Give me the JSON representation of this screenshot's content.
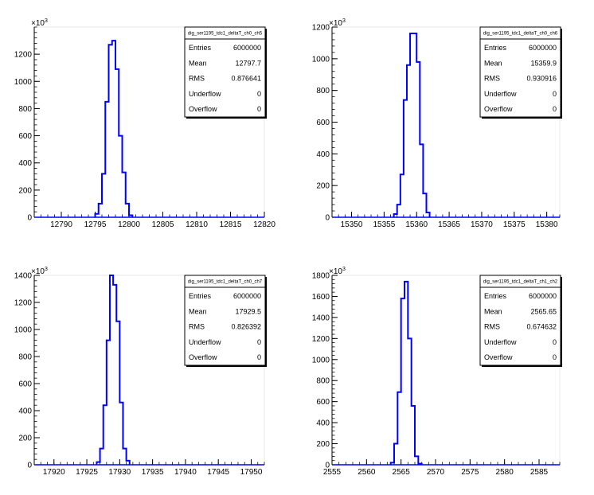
{
  "chart_data": [
    {
      "type": "histogram",
      "stats": {
        "title": "dig_ser1195_tdc1_deltaT_ch0_ch5",
        "rows": [
          {
            "key": "Entries",
            "value": "6000000"
          },
          {
            "key": "Mean",
            "value": "12797.7"
          },
          {
            "key": "RMS",
            "value": "0.876641"
          },
          {
            "key": "Underflow",
            "value": "0"
          },
          {
            "key": "Overflow",
            "value": "0"
          }
        ]
      },
      "y_exponent": "10³",
      "xlim": [
        12786,
        12820
      ],
      "ylim": [
        0,
        1400
      ],
      "x_ticks": [
        12790,
        12795,
        12800,
        12805,
        12810,
        12815,
        12820
      ],
      "y_ticks": [
        0,
        200,
        400,
        600,
        800,
        1000,
        1200
      ],
      "bin_width": 0.5,
      "bins": [
        {
          "x": 12795.0,
          "y": 25
        },
        {
          "x": 12795.5,
          "y": 100
        },
        {
          "x": 12796.0,
          "y": 320
        },
        {
          "x": 12796.5,
          "y": 850
        },
        {
          "x": 12797.0,
          "y": 1270
        },
        {
          "x": 12797.5,
          "y": 1300
        },
        {
          "x": 12798.0,
          "y": 1090
        },
        {
          "x": 12798.5,
          "y": 600
        },
        {
          "x": 12799.0,
          "y": 330
        },
        {
          "x": 12799.5,
          "y": 100
        },
        {
          "x": 12800.0,
          "y": 15
        }
      ]
    },
    {
      "type": "histogram",
      "stats": {
        "title": "dig_ser1195_tdc1_deltaT_ch0_ch6",
        "rows": [
          {
            "key": "Entries",
            "value": "6000000"
          },
          {
            "key": "Mean",
            "value": "15359.9"
          },
          {
            "key": "RMS",
            "value": "0.930916"
          },
          {
            "key": "Underflow",
            "value": "0"
          },
          {
            "key": "Overflow",
            "value": "0"
          }
        ]
      },
      "y_exponent": "10³",
      "xlim": [
        15347,
        15382
      ],
      "ylim": [
        0,
        1200
      ],
      "x_ticks": [
        15350,
        15355,
        15360,
        15365,
        15370,
        15375,
        15380
      ],
      "y_ticks": [
        0,
        200,
        400,
        600,
        800,
        1000,
        1200
      ],
      "bin_width": 0.5,
      "bins": [
        {
          "x": 15356.5,
          "y": 20
        },
        {
          "x": 15357.0,
          "y": 80
        },
        {
          "x": 15357.5,
          "y": 270
        },
        {
          "x": 15358.0,
          "y": 740
        },
        {
          "x": 15358.5,
          "y": 960
        },
        {
          "x": 15359.0,
          "y": 1160
        },
        {
          "x": 15359.5,
          "y": 1160
        },
        {
          "x": 15360.0,
          "y": 980
        },
        {
          "x": 15360.5,
          "y": 460
        },
        {
          "x": 15361.0,
          "y": 150
        },
        {
          "x": 15361.5,
          "y": 30
        }
      ]
    },
    {
      "type": "histogram",
      "stats": {
        "title": "dig_ser1195_tdc1_deltaT_ch0_ch7",
        "rows": [
          {
            "key": "Entries",
            "value": "6000000"
          },
          {
            "key": "Mean",
            "value": "17929.5"
          },
          {
            "key": "RMS",
            "value": "0.826392"
          },
          {
            "key": "Underflow",
            "value": "0"
          },
          {
            "key": "Overflow",
            "value": "0"
          }
        ]
      },
      "y_exponent": "10³",
      "xlim": [
        17917,
        17952
      ],
      "ylim": [
        0,
        1400
      ],
      "x_ticks": [
        17920,
        17925,
        17930,
        17935,
        17940,
        17945,
        17950
      ],
      "y_ticks": [
        0,
        200,
        400,
        600,
        800,
        1000,
        1200,
        1400
      ],
      "bin_width": 0.5,
      "bins": [
        {
          "x": 17926.5,
          "y": 20
        },
        {
          "x": 17927.0,
          "y": 120
        },
        {
          "x": 17927.5,
          "y": 440
        },
        {
          "x": 17928.0,
          "y": 920
        },
        {
          "x": 17928.5,
          "y": 1400
        },
        {
          "x": 17929.0,
          "y": 1330
        },
        {
          "x": 17929.5,
          "y": 1060
        },
        {
          "x": 17930.0,
          "y": 460
        },
        {
          "x": 17930.5,
          "y": 120
        },
        {
          "x": 17931.0,
          "y": 30
        }
      ]
    },
    {
      "type": "histogram",
      "stats": {
        "title": "dig_ser1195_tdc1_deltaT_ch1_ch2",
        "rows": [
          {
            "key": "Entries",
            "value": "6000000"
          },
          {
            "key": "Mean",
            "value": "2565.65"
          },
          {
            "key": "RMS",
            "value": "0.674632"
          },
          {
            "key": "Underflow",
            "value": "0"
          },
          {
            "key": "Overflow",
            "value": "0"
          }
        ]
      },
      "y_exponent": "10³",
      "xlim": [
        2555,
        2588
      ],
      "ylim": [
        0,
        1800
      ],
      "x_ticks": [
        2555,
        2560,
        2565,
        2570,
        2575,
        2580,
        2585
      ],
      "y_ticks": [
        0,
        200,
        400,
        600,
        800,
        1000,
        1200,
        1400,
        1600,
        1800
      ],
      "bin_width": 0.5,
      "bins": [
        {
          "x": 2563.5,
          "y": 20
        },
        {
          "x": 2564.0,
          "y": 200
        },
        {
          "x": 2564.5,
          "y": 690
        },
        {
          "x": 2565.0,
          "y": 1580
        },
        {
          "x": 2565.5,
          "y": 1740
        },
        {
          "x": 2566.0,
          "y": 1200
        },
        {
          "x": 2566.5,
          "y": 560
        },
        {
          "x": 2567.0,
          "y": 80
        },
        {
          "x": 2567.5,
          "y": 10
        }
      ]
    }
  ],
  "colors": {
    "line": "#0000ff",
    "axis": "#000000",
    "frame": "#000000",
    "background": "#ffffff"
  }
}
